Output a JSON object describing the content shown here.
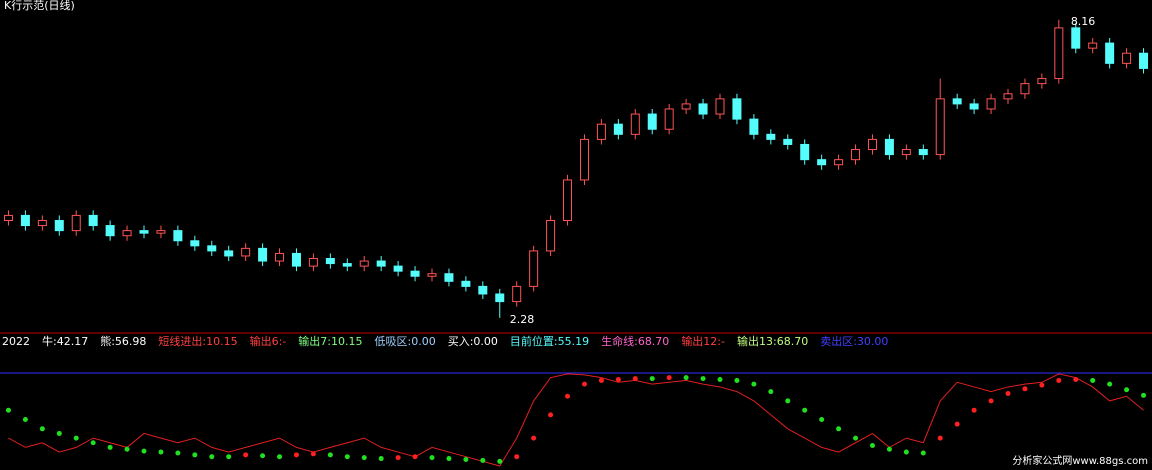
{
  "chart_data": {
    "type": "candlestick",
    "title": "K行示范(日线)",
    "up_color": "#ff5454",
    "down_color": "#54fcfc",
    "ylim": [
      2.0,
      8.55
    ],
    "open": [
      4.2,
      4.3,
      4.1,
      4.2,
      4.0,
      4.3,
      4.1,
      3.9,
      4.0,
      3.95,
      4.0,
      3.8,
      3.7,
      3.6,
      3.5,
      3.65,
      3.4,
      3.55,
      3.3,
      3.45,
      3.35,
      3.3,
      3.4,
      3.3,
      3.2,
      3.1,
      3.15,
      3.0,
      2.9,
      2.75,
      2.6,
      2.9,
      3.6,
      4.2,
      5.0,
      5.8,
      6.1,
      5.9,
      6.3,
      6.0,
      6.4,
      6.5,
      6.3,
      6.6,
      6.2,
      5.9,
      5.8,
      5.7,
      5.4,
      5.3,
      5.4,
      5.6,
      5.8,
      5.5,
      5.6,
      5.5,
      6.6,
      6.5,
      6.4,
      6.6,
      6.7,
      6.9,
      7.0,
      8.0,
      7.6,
      7.7,
      7.3,
      7.5
    ],
    "close": [
      4.3,
      4.1,
      4.2,
      4.0,
      4.3,
      4.1,
      3.9,
      4.0,
      3.95,
      4.0,
      3.8,
      3.7,
      3.6,
      3.5,
      3.65,
      3.4,
      3.55,
      3.3,
      3.45,
      3.35,
      3.3,
      3.4,
      3.3,
      3.2,
      3.1,
      3.15,
      3.0,
      2.9,
      2.75,
      2.6,
      2.9,
      3.6,
      4.2,
      5.0,
      5.8,
      6.1,
      5.9,
      6.3,
      6.0,
      6.4,
      6.5,
      6.3,
      6.6,
      6.2,
      5.9,
      5.8,
      5.7,
      5.4,
      5.3,
      5.4,
      5.6,
      5.8,
      5.5,
      5.6,
      5.5,
      6.6,
      6.5,
      6.4,
      6.6,
      6.7,
      6.9,
      7.0,
      8.0,
      7.6,
      7.7,
      7.3,
      7.5,
      7.2
    ],
    "high": [
      4.4,
      4.4,
      4.3,
      4.3,
      4.4,
      4.4,
      4.2,
      4.1,
      4.1,
      4.1,
      4.1,
      3.9,
      3.8,
      3.7,
      3.75,
      3.75,
      3.65,
      3.65,
      3.55,
      3.55,
      3.45,
      3.5,
      3.5,
      3.4,
      3.3,
      3.25,
      3.25,
      3.1,
      3.0,
      2.85,
      3.0,
      3.7,
      4.3,
      5.1,
      5.9,
      6.2,
      6.2,
      6.4,
      6.4,
      6.5,
      6.6,
      6.6,
      6.7,
      6.7,
      6.3,
      6.0,
      5.9,
      5.8,
      5.5,
      5.5,
      5.7,
      5.9,
      5.9,
      5.7,
      5.7,
      7.0,
      6.7,
      6.6,
      6.7,
      6.8,
      7.0,
      7.1,
      8.16,
      8.1,
      7.8,
      7.8,
      7.6,
      7.6
    ],
    "low": [
      4.1,
      4.0,
      4.0,
      3.9,
      3.9,
      4.0,
      3.8,
      3.8,
      3.85,
      3.85,
      3.7,
      3.6,
      3.5,
      3.4,
      3.4,
      3.3,
      3.3,
      3.2,
      3.2,
      3.25,
      3.2,
      3.2,
      3.2,
      3.1,
      3.0,
      3.0,
      2.9,
      2.8,
      2.65,
      2.28,
      2.5,
      2.8,
      3.5,
      4.1,
      4.9,
      5.7,
      5.8,
      5.8,
      5.9,
      5.9,
      6.3,
      6.2,
      6.2,
      6.1,
      5.8,
      5.7,
      5.6,
      5.3,
      5.2,
      5.2,
      5.3,
      5.5,
      5.4,
      5.4,
      5.4,
      5.4,
      6.4,
      6.3,
      6.3,
      6.5,
      6.6,
      6.8,
      6.9,
      7.5,
      7.5,
      7.2,
      7.2,
      7.1
    ],
    "indicator": {
      "ylim": [
        0,
        100
      ],
      "legend": [
        {
          "text": "2022",
          "color": "#ffffff"
        },
        {
          "text": "牛:42.17",
          "color": "#ffffff"
        },
        {
          "text": "熊:56.98",
          "color": "#ffffff"
        },
        {
          "text": "短线进出:10.15",
          "color": "#ff4040"
        },
        {
          "text": "输出6:-",
          "color": "#ff4040"
        },
        {
          "text": "输出7:10.15",
          "color": "#80ff80"
        },
        {
          "text": "低吸区:0.00",
          "color": "#9fd0ff"
        },
        {
          "text": "买入:0.00",
          "color": "#ffffff"
        },
        {
          "text": "目前位置:55.19",
          "color": "#54fcfc"
        },
        {
          "text": "生命线:68.70",
          "color": "#ff66cc"
        },
        {
          "text": "输出12:-",
          "color": "#ff4040"
        },
        {
          "text": "输出13:68.70",
          "color": "#c0ff80"
        },
        {
          "text": "卖出区:30.00",
          "color": "#4040ff"
        }
      ],
      "series": [
        {
          "color": "#e02020",
          "style": "line",
          "values": [
            30,
            20,
            25,
            15,
            20,
            30,
            25,
            20,
            35,
            30,
            25,
            30,
            20,
            15,
            20,
            25,
            30,
            20,
            15,
            20,
            25,
            30,
            20,
            15,
            10,
            20,
            15,
            10,
            5,
            0,
            30,
            70,
            95,
            99,
            98,
            95,
            90,
            92,
            88,
            90,
            92,
            88,
            85,
            80,
            70,
            55,
            40,
            30,
            20,
            15,
            25,
            35,
            20,
            30,
            25,
            70,
            90,
            85,
            80,
            85,
            88,
            90,
            99,
            95,
            85,
            70,
            75,
            60
          ]
        },
        {
          "color": "#20e020",
          "style": "dots",
          "values": [
            60,
            50,
            40,
            35,
            30,
            25,
            20,
            18,
            16,
            15,
            14,
            12,
            10,
            10,
            12,
            11,
            10,
            12,
            13,
            12,
            10,
            9,
            8,
            9,
            10,
            9,
            8,
            7,
            6,
            5,
            10,
            30,
            55,
            75,
            88,
            92,
            93,
            94,
            94,
            95,
            95,
            94,
            93,
            92,
            88,
            80,
            70,
            60,
            50,
            40,
            30,
            22,
            18,
            15,
            14,
            30,
            45,
            60,
            70,
            78,
            83,
            87,
            92,
            93,
            92,
            88,
            82,
            76
          ]
        }
      ]
    },
    "watermark": "分析家公式网www.88gs.com"
  }
}
